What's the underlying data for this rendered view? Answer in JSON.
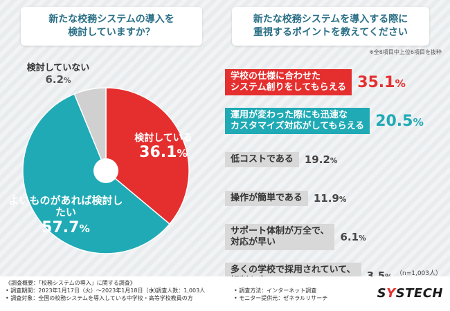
{
  "left_title": "新たな校務システムの導入を\n検討していますか？",
  "right_title": "新たな校務システムを導入する際に\n重視するポイントを教えてください",
  "right_note": "※全8項目中上位6項目を抜粋",
  "n_note": "（n=1,003人）",
  "chart_data": [
    {
      "type": "pie",
      "title": "新たな校務システムの導入を検討していますか？",
      "start_angle_deg": 0,
      "slices": [
        {
          "label": "検討している",
          "value": 36.1,
          "display": "36.1",
          "color": "#e52f2f"
        },
        {
          "label": "よいものがあれば検討したい",
          "value": 57.7,
          "display": "57.7",
          "color": "#1faab5"
        },
        {
          "label": "検討していない",
          "value": 6.2,
          "display": "6.2",
          "color": "#d0d0d0"
        }
      ],
      "unit": "%"
    },
    {
      "type": "bar",
      "title": "新たな校務システムを導入する際に重視するポイントを教えてください",
      "categories": [
        "学校の仕様に合わせた\nシステム創りをしてもらえる",
        "運用が変わった際にも迅速な\nカスタマイズ対応がしてもらえる",
        "低コストである",
        "操作が簡単である",
        "サポート体制が万全で、\n対応が早い",
        "多くの学校で採用されていて、\n評判も良い"
      ],
      "values": [
        35.1,
        20.5,
        19.2,
        11.9,
        6.1,
        3.5
      ],
      "styles": [
        "red",
        "teal",
        "gray",
        "gray",
        "gray",
        "gray"
      ],
      "unit": "%"
    }
  ],
  "footer": {
    "survey_title": "《調査概要：「校務システムの導入」に関する調査》",
    "period": "• 調査期間：2023年1月17日（火）～2023年1月18日（水）",
    "people": "• 調査人数：1,003人",
    "method": "• 調査方法：インターネット調査",
    "target": "• 調査対象：全国の校務システムを導入している中学校・高等学校教員の方",
    "provider": "• モニター提供元：ゼネラルリサーチ"
  },
  "logo": {
    "pre": "S",
    "y": "Y",
    "post": "STECH"
  }
}
